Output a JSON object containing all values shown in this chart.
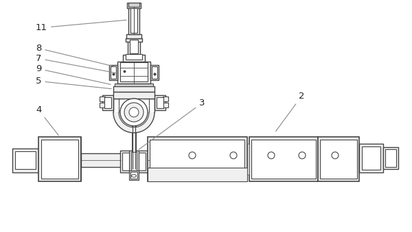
{
  "bg_color": "#ffffff",
  "line_color": "#444444",
  "fill_light": "#f0f0f0",
  "fill_mid": "#d0d0d0",
  "fill_dark": "#b0b0b0",
  "ann_color": "#888888",
  "label_color": "#222222",
  "fig_width": 6.0,
  "fig_height": 3.39,
  "dpi": 100
}
